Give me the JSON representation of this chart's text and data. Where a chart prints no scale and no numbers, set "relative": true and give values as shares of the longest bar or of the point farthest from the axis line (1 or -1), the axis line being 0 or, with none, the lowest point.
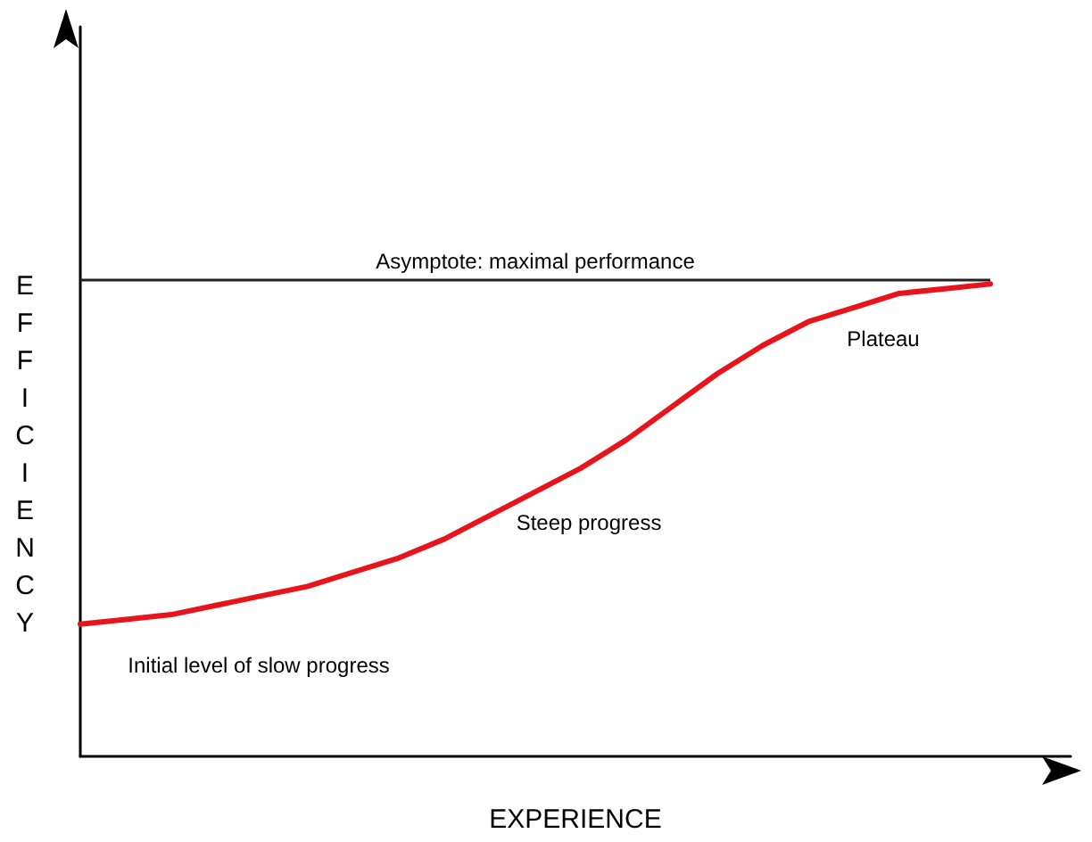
{
  "chart_data": {
    "type": "line",
    "relative": true,
    "xlabel": "EXPERIENCE",
    "ylabel": "EFFICIENCY",
    "categories": [
      null,
      null,
      null,
      null,
      null,
      null,
      null,
      null,
      null,
      null,
      null,
      null,
      null,
      null,
      null,
      null,
      null,
      null,
      null,
      null,
      null
    ],
    "series": [
      {
        "color": "#e8141b",
        "values": [
          0.28,
          0.29,
          0.3,
          0.32,
          0.34,
          0.36,
          0.39,
          0.42,
          0.46,
          0.51,
          0.56,
          0.61,
          0.67,
          0.74,
          0.81,
          0.87,
          0.92,
          0.95,
          0.98,
          0.99,
          1.0
        ]
      }
    ],
    "ref_lines": [
      {
        "axis": "y",
        "value": 1.01,
        "label": "Asymptote: maximal performance",
        "color": "#222222"
      }
    ],
    "annotations": [
      "Plateau",
      "Steep progress",
      "Initial level of slow progress"
    ],
    "marker": "none",
    "line_style": "solid",
    "grid": false
  }
}
